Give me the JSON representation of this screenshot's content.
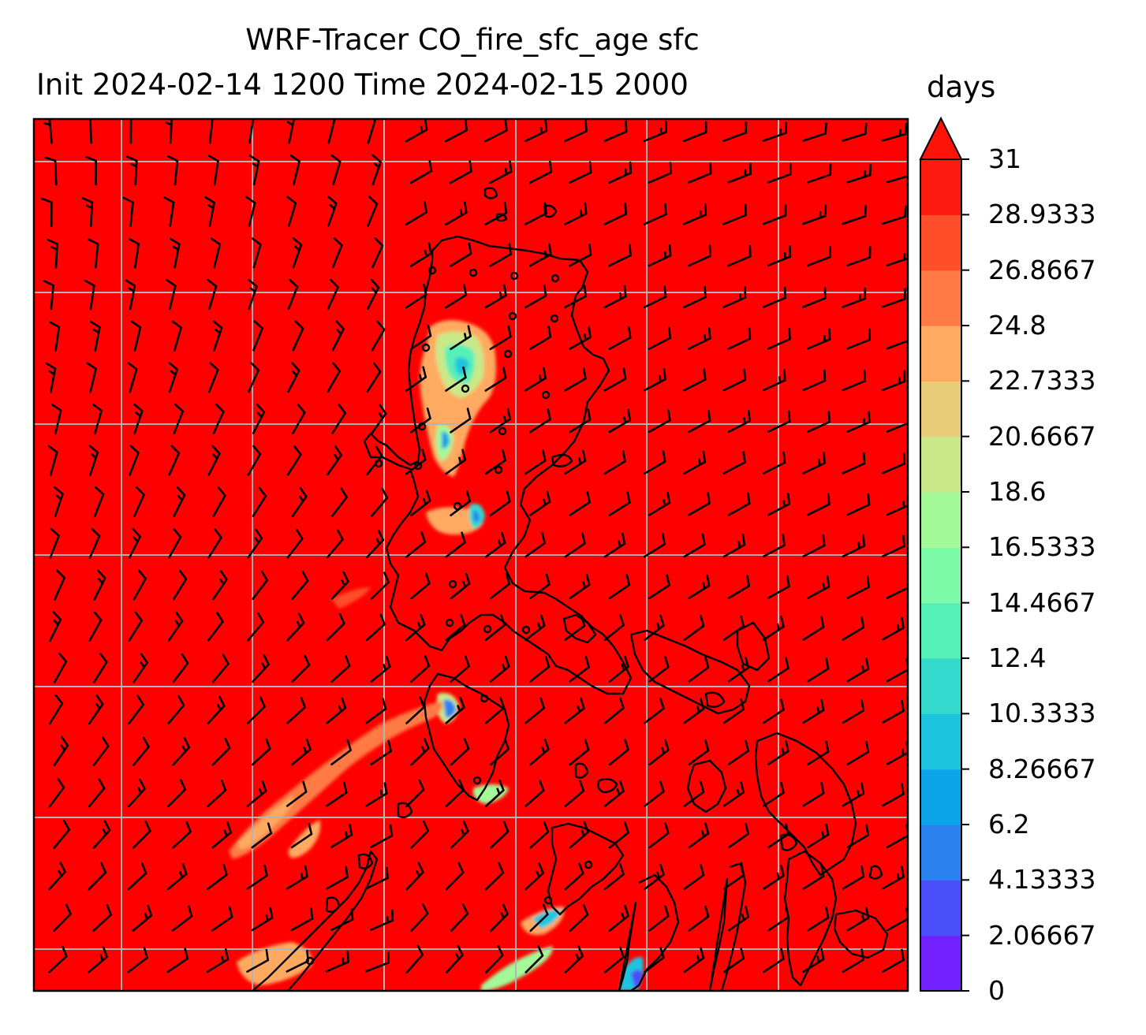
{
  "title": {
    "line1": "WRF-Tracer CO_fire_sfc_age sfc",
    "line2": "Init 2024-02-14 1200 Time 2024-02-15 2000",
    "units": "days"
  },
  "colorbar": {
    "ticks": [
      "31",
      "28.9333",
      "26.8667",
      "24.8",
      "22.7333",
      "20.6667",
      "18.6",
      "16.5333",
      "14.4667",
      "12.4",
      "10.3333",
      "8.26667",
      "6.2",
      "4.13333",
      "2.06667",
      "0"
    ],
    "colors_bottom_to_top": [
      "#7320ff",
      "#4a4dfa",
      "#2a82f0",
      "#0ca4e8",
      "#1cc4e0",
      "#33d9cc",
      "#55f0b8",
      "#7bfaa8",
      "#a3f898",
      "#c9e888",
      "#e8cc78",
      "#ffaa60",
      "#ff7a44",
      "#ff4e2a",
      "#ff1a10"
    ],
    "extend": "max",
    "extend_color": "#ff1308"
  },
  "map": {
    "background_color": "#fe0000",
    "gridline_color": "#b4b4b4",
    "coastline_color": "#000000",
    "wind_barbs": "shown",
    "gridlines": "shown"
  }
}
